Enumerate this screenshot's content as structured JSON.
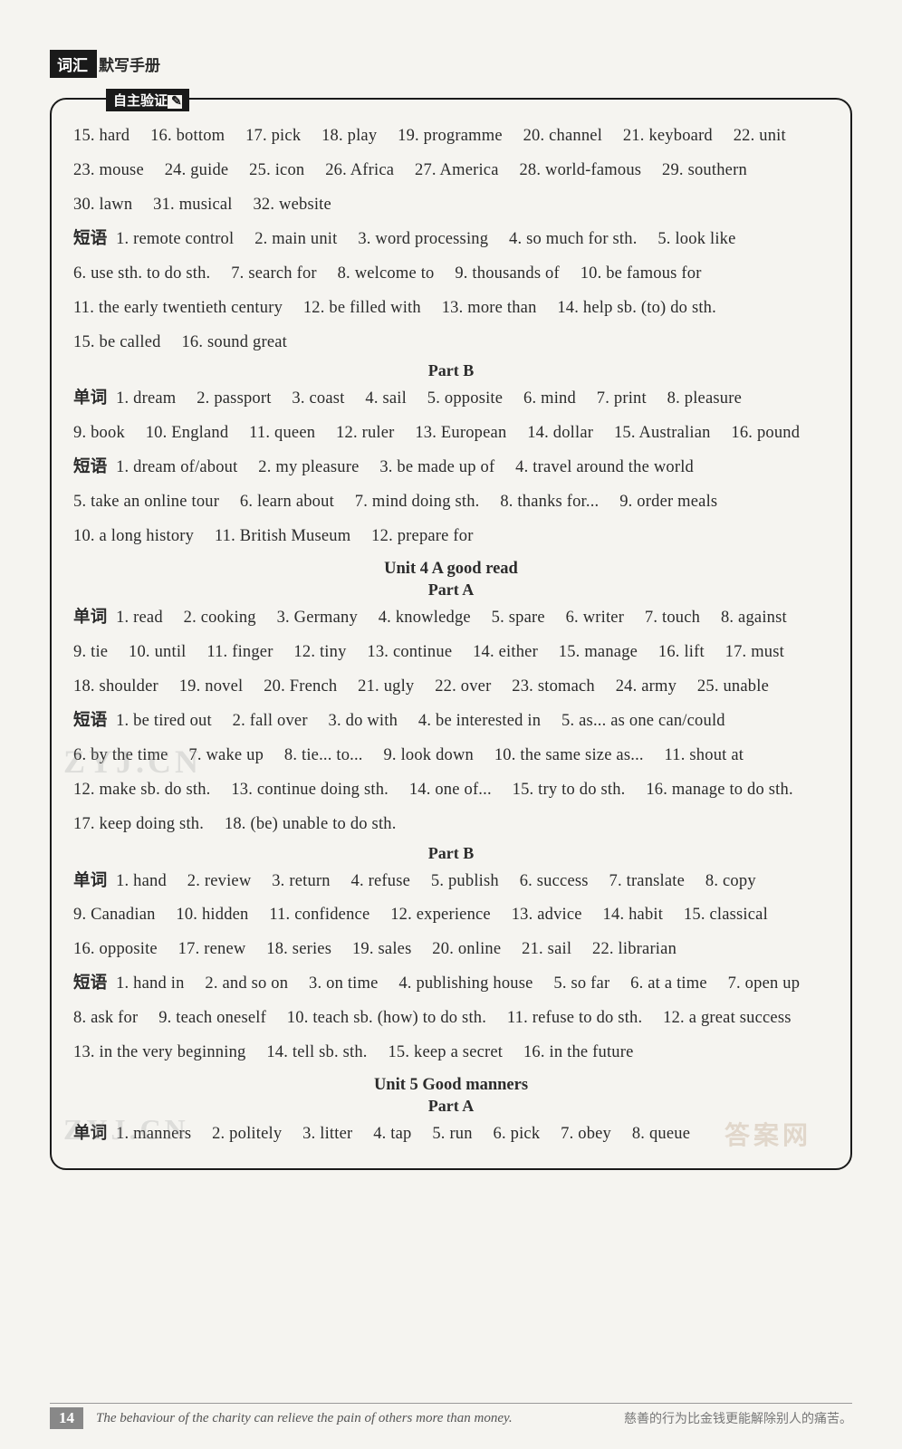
{
  "header": {
    "black": "词汇",
    "tail": "默写手册"
  },
  "box_tab": "自主验证",
  "top_words": {
    "items": [
      {
        "n": "15",
        "w": "hard"
      },
      {
        "n": "16",
        "w": "bottom"
      },
      {
        "n": "17",
        "w": "pick"
      },
      {
        "n": "18",
        "w": "play"
      },
      {
        "n": "19",
        "w": "programme"
      },
      {
        "n": "20",
        "w": "channel"
      },
      {
        "n": "21",
        "w": "keyboard"
      },
      {
        "n": "22",
        "w": "unit"
      },
      {
        "n": "23",
        "w": "mouse"
      },
      {
        "n": "24",
        "w": "guide"
      },
      {
        "n": "25",
        "w": "icon"
      },
      {
        "n": "26",
        "w": "Africa"
      },
      {
        "n": "27",
        "w": "America"
      },
      {
        "n": "28",
        "w": "world-famous"
      },
      {
        "n": "29",
        "w": "southern"
      },
      {
        "n": "30",
        "w": "lawn"
      },
      {
        "n": "31",
        "w": "musical"
      },
      {
        "n": "32",
        "w": "website"
      }
    ]
  },
  "top_phrases": {
    "label": "短语",
    "items": [
      {
        "n": "1",
        "w": "remote control"
      },
      {
        "n": "2",
        "w": "main unit"
      },
      {
        "n": "3",
        "w": "word processing"
      },
      {
        "n": "4",
        "w": "so much for sth."
      },
      {
        "n": "5",
        "w": "look like"
      },
      {
        "n": "6",
        "w": "use sth. to do sth."
      },
      {
        "n": "7",
        "w": "search for"
      },
      {
        "n": "8",
        "w": "welcome to"
      },
      {
        "n": "9",
        "w": "thousands of"
      },
      {
        "n": "10",
        "w": "be famous for"
      },
      {
        "n": "11",
        "w": "the early twentieth century"
      },
      {
        "n": "12",
        "w": "be filled with"
      },
      {
        "n": "13",
        "w": "more than"
      },
      {
        "n": "14",
        "w": "help sb. (to) do sth."
      },
      {
        "n": "15",
        "w": "be called"
      },
      {
        "n": "16",
        "w": "sound great"
      }
    ]
  },
  "partB1_title": "Part B",
  "partB1_words": {
    "label": "单词",
    "items": [
      {
        "n": "1",
        "w": "dream"
      },
      {
        "n": "2",
        "w": "passport"
      },
      {
        "n": "3",
        "w": "coast"
      },
      {
        "n": "4",
        "w": "sail"
      },
      {
        "n": "5",
        "w": "opposite"
      },
      {
        "n": "6",
        "w": "mind"
      },
      {
        "n": "7",
        "w": "print"
      },
      {
        "n": "8",
        "w": "pleasure"
      },
      {
        "n": "9",
        "w": "book"
      },
      {
        "n": "10",
        "w": "England"
      },
      {
        "n": "11",
        "w": "queen"
      },
      {
        "n": "12",
        "w": "ruler"
      },
      {
        "n": "13",
        "w": "European"
      },
      {
        "n": "14",
        "w": "dollar"
      },
      {
        "n": "15",
        "w": "Australian"
      },
      {
        "n": "16",
        "w": "pound"
      }
    ]
  },
  "partB1_phrases": {
    "label": "短语",
    "items": [
      {
        "n": "1",
        "w": "dream of/about"
      },
      {
        "n": "2",
        "w": "my pleasure"
      },
      {
        "n": "3",
        "w": "be made up of"
      },
      {
        "n": "4",
        "w": "travel around the world"
      },
      {
        "n": "5",
        "w": "take an online tour"
      },
      {
        "n": "6",
        "w": "learn about"
      },
      {
        "n": "7",
        "w": "mind doing sth."
      },
      {
        "n": "8",
        "w": "thanks for..."
      },
      {
        "n": "9",
        "w": "order meals"
      },
      {
        "n": "10",
        "w": "a long history"
      },
      {
        "n": "11",
        "w": "British Museum"
      },
      {
        "n": "12",
        "w": "prepare for"
      }
    ]
  },
  "unit4_title": "Unit 4   A good read",
  "partA2_title": "Part A",
  "partA2_words": {
    "label": "单词",
    "items": [
      {
        "n": "1",
        "w": "read"
      },
      {
        "n": "2",
        "w": "cooking"
      },
      {
        "n": "3",
        "w": "Germany"
      },
      {
        "n": "4",
        "w": "knowledge"
      },
      {
        "n": "5",
        "w": "spare"
      },
      {
        "n": "6",
        "w": "writer"
      },
      {
        "n": "7",
        "w": "touch"
      },
      {
        "n": "8",
        "w": "against"
      },
      {
        "n": "9",
        "w": "tie"
      },
      {
        "n": "10",
        "w": "until"
      },
      {
        "n": "11",
        "w": "finger"
      },
      {
        "n": "12",
        "w": "tiny"
      },
      {
        "n": "13",
        "w": "continue"
      },
      {
        "n": "14",
        "w": "either"
      },
      {
        "n": "15",
        "w": "manage"
      },
      {
        "n": "16",
        "w": "lift"
      },
      {
        "n": "17",
        "w": "must"
      },
      {
        "n": "18",
        "w": "shoulder"
      },
      {
        "n": "19",
        "w": "novel"
      },
      {
        "n": "20",
        "w": "French"
      },
      {
        "n": "21",
        "w": "ugly"
      },
      {
        "n": "22",
        "w": "over"
      },
      {
        "n": "23",
        "w": "stomach"
      },
      {
        "n": "24",
        "w": "army"
      },
      {
        "n": "25",
        "w": "unable"
      }
    ]
  },
  "partA2_phrases": {
    "label": "短语",
    "items": [
      {
        "n": "1",
        "w": "be tired out"
      },
      {
        "n": "2",
        "w": "fall over"
      },
      {
        "n": "3",
        "w": "do with"
      },
      {
        "n": "4",
        "w": "be interested in"
      },
      {
        "n": "5",
        "w": "as... as one can/could"
      },
      {
        "n": "6",
        "w": "by the time"
      },
      {
        "n": "7",
        "w": "wake up"
      },
      {
        "n": "8",
        "w": "tie... to..."
      },
      {
        "n": "9",
        "w": "look down"
      },
      {
        "n": "10",
        "w": "the same size as..."
      },
      {
        "n": "11",
        "w": "shout at"
      },
      {
        "n": "12",
        "w": "make sb. do sth."
      },
      {
        "n": "13",
        "w": "continue doing sth."
      },
      {
        "n": "14",
        "w": "one of..."
      },
      {
        "n": "15",
        "w": "try to do sth."
      },
      {
        "n": "16",
        "w": "manage to do sth."
      },
      {
        "n": "17",
        "w": "keep doing sth."
      },
      {
        "n": "18",
        "w": "(be) unable to do sth."
      }
    ]
  },
  "partB2_title": "Part B",
  "partB2_words": {
    "label": "单词",
    "items": [
      {
        "n": "1",
        "w": "hand"
      },
      {
        "n": "2",
        "w": "review"
      },
      {
        "n": "3",
        "w": "return"
      },
      {
        "n": "4",
        "w": "refuse"
      },
      {
        "n": "5",
        "w": "publish"
      },
      {
        "n": "6",
        "w": "success"
      },
      {
        "n": "7",
        "w": "translate"
      },
      {
        "n": "8",
        "w": "copy"
      },
      {
        "n": "9",
        "w": "Canadian"
      },
      {
        "n": "10",
        "w": "hidden"
      },
      {
        "n": "11",
        "w": "confidence"
      },
      {
        "n": "12",
        "w": "experience"
      },
      {
        "n": "13",
        "w": "advice"
      },
      {
        "n": "14",
        "w": "habit"
      },
      {
        "n": "15",
        "w": "classical"
      },
      {
        "n": "16",
        "w": "opposite"
      },
      {
        "n": "17",
        "w": "renew"
      },
      {
        "n": "18",
        "w": "series"
      },
      {
        "n": "19",
        "w": "sales"
      },
      {
        "n": "20",
        "w": "online"
      },
      {
        "n": "21",
        "w": "sail"
      },
      {
        "n": "22",
        "w": "librarian"
      }
    ]
  },
  "partB2_phrases": {
    "label": "短语",
    "items": [
      {
        "n": "1",
        "w": "hand in"
      },
      {
        "n": "2",
        "w": "and so on"
      },
      {
        "n": "3",
        "w": "on time"
      },
      {
        "n": "4",
        "w": "publishing house"
      },
      {
        "n": "5",
        "w": "so far"
      },
      {
        "n": "6",
        "w": "at a time"
      },
      {
        "n": "7",
        "w": "open up"
      },
      {
        "n": "8",
        "w": "ask for"
      },
      {
        "n": "9",
        "w": "teach oneself"
      },
      {
        "n": "10",
        "w": "teach sb. (how) to do sth."
      },
      {
        "n": "11",
        "w": "refuse to do sth."
      },
      {
        "n": "12",
        "w": "a great success"
      },
      {
        "n": "13",
        "w": "in the very beginning"
      },
      {
        "n": "14",
        "w": "tell sb. sth."
      },
      {
        "n": "15",
        "w": "keep a secret"
      },
      {
        "n": "16",
        "w": "in the future"
      }
    ]
  },
  "unit5_title": "Unit 5   Good manners",
  "partA3_title": "Part A",
  "partA3_words": {
    "label": "单词",
    "items": [
      {
        "n": "1",
        "w": "manners"
      },
      {
        "n": "2",
        "w": "politely"
      },
      {
        "n": "3",
        "w": "litter"
      },
      {
        "n": "4",
        "w": "tap"
      },
      {
        "n": "5",
        "w": "run"
      },
      {
        "n": "6",
        "w": "pick"
      },
      {
        "n": "7",
        "w": "obey"
      },
      {
        "n": "8",
        "w": "queue"
      }
    ]
  },
  "footer": {
    "page": "14",
    "en": "The behaviour of the charity can relieve the pain of others more than money.",
    "zh": "慈善的行为比金钱更能解除别人的痛苦。"
  },
  "watermarks": {
    "w1": "ZYJ.CN",
    "w2": "ZYJ.CN",
    "w3": "答案网"
  }
}
